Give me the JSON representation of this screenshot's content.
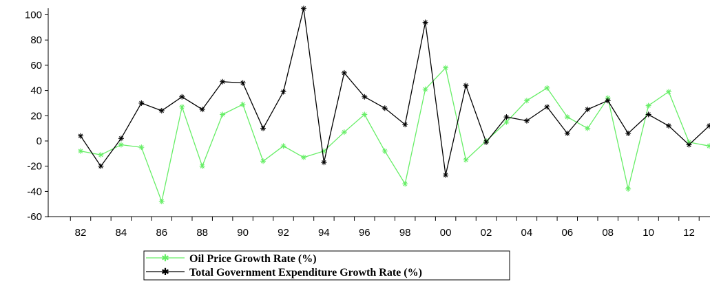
{
  "chart_data": {
    "type": "line",
    "x": [
      1982,
      1983,
      1984,
      1985,
      1986,
      1987,
      1988,
      1989,
      1990,
      1991,
      1992,
      1993,
      1994,
      1995,
      1996,
      1997,
      1998,
      1999,
      2000,
      2001,
      2002,
      2003,
      2004,
      2005,
      2006,
      2007,
      2008,
      2009,
      2010,
      2011,
      2012,
      2013
    ],
    "x_tick_labels": [
      "82",
      "84",
      "86",
      "88",
      "90",
      "92",
      "94",
      "96",
      "98",
      "00",
      "02",
      "04",
      "06",
      "08",
      "10",
      "12"
    ],
    "x_tick_years": [
      1982,
      1984,
      1986,
      1988,
      1990,
      1992,
      1994,
      1996,
      1998,
      2000,
      2002,
      2004,
      2006,
      2008,
      2010,
      2012
    ],
    "y_ticks": [
      -60,
      -40,
      -20,
      0,
      20,
      40,
      60,
      80,
      100
    ],
    "y_tick_labels": [
      "-60",
      "-40",
      "-20",
      "0",
      "20",
      "40",
      "60",
      "80",
      "100"
    ],
    "ylim": [
      -60,
      107
    ],
    "xlim": [
      1981,
      2013
    ],
    "title": "",
    "xlabel": "",
    "ylabel": "",
    "legend_position": "bottom-center",
    "series": [
      {
        "name": "Oil Price Growth Rate (%)",
        "color": "#66ee66",
        "marker": "asterisk",
        "values": [
          -8,
          -11,
          -3,
          -5,
          -48,
          27,
          -20,
          21,
          29,
          -16,
          -4,
          -13,
          -8,
          7,
          21,
          -8,
          -34,
          41,
          58,
          -15,
          0,
          15,
          32,
          42,
          19,
          10,
          34,
          -38,
          28,
          39,
          -1,
          -4
        ]
      },
      {
        "name": "Total Government Expenditure Growth Rate (%)",
        "color": "#000000",
        "marker": "asterisk",
        "values": [
          4,
          -20,
          2,
          30,
          24,
          35,
          25,
          47,
          46,
          10,
          39,
          105,
          -17,
          54,
          35,
          26,
          13,
          94,
          -27,
          44,
          -1,
          19,
          16,
          27,
          6,
          25,
          32,
          6,
          21,
          12,
          -3,
          12
        ]
      }
    ]
  }
}
